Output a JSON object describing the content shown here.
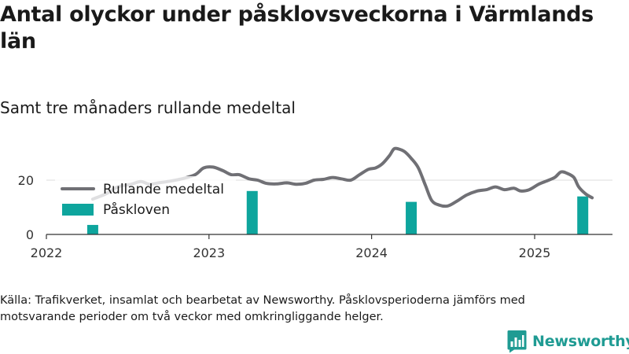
{
  "header": {
    "title": "Antal olyckor under påsklovsveckorna i Värmlands län",
    "subtitle": "Samt tre månaders rullande medeltal"
  },
  "footer": {
    "source": "Källa: Trafikverket, insamlat och bearbetat av Newsworthy. Påsklovsperioderna jämförs med motsvarande perioder om två veckor med omkringliggande helger.",
    "brand": "Newsworthy"
  },
  "colors": {
    "line": "#707075",
    "bar": "#0ea59d",
    "axis": "#333333",
    "grid": "#dddddd",
    "brand": "#1f9b93"
  },
  "chart_data": {
    "type": "bar+line",
    "xlabel": "",
    "ylabel": "",
    "x_ticks": [
      "2022",
      "2023",
      "2024",
      "2025"
    ],
    "y_ticks": [
      0,
      20
    ],
    "ylim": [
      0,
      33
    ],
    "grid": "horizontal",
    "legend": {
      "position": "top-left",
      "items": [
        {
          "label": "Rullande medeltal",
          "kind": "line"
        },
        {
          "label": "Påskloven",
          "kind": "bar"
        }
      ]
    },
    "series": [
      {
        "name": "Påskloven",
        "type": "bar",
        "points": [
          {
            "date": "2022-04-15",
            "value": 3.5
          },
          {
            "date": "2023-04-08",
            "value": 16
          },
          {
            "date": "2024-03-30",
            "value": 12
          },
          {
            "date": "2025-04-19",
            "value": 14
          }
        ]
      },
      {
        "name": "Rullande medeltal",
        "type": "line",
        "points": [
          {
            "date": "2022-04-15",
            "value": 13
          },
          {
            "date": "2022-05-15",
            "value": 15
          },
          {
            "date": "2022-06-10",
            "value": 17.5
          },
          {
            "date": "2022-07-10",
            "value": 18.5
          },
          {
            "date": "2022-08-01",
            "value": 19.5
          },
          {
            "date": "2022-08-20",
            "value": 18.5
          },
          {
            "date": "2022-09-10",
            "value": 19
          },
          {
            "date": "2022-10-01",
            "value": 19.5
          },
          {
            "date": "2022-11-01",
            "value": 20.5
          },
          {
            "date": "2022-12-01",
            "value": 22
          },
          {
            "date": "2022-12-20",
            "value": 24.5
          },
          {
            "date": "2023-01-10",
            "value": 24.8
          },
          {
            "date": "2023-02-01",
            "value": 23.5
          },
          {
            "date": "2023-02-20",
            "value": 22
          },
          {
            "date": "2023-03-10",
            "value": 22
          },
          {
            "date": "2023-04-01",
            "value": 20.5
          },
          {
            "date": "2023-04-20",
            "value": 20
          },
          {
            "date": "2023-05-10",
            "value": 18.8
          },
          {
            "date": "2023-06-01",
            "value": 18.6
          },
          {
            "date": "2023-06-25",
            "value": 19
          },
          {
            "date": "2023-07-15",
            "value": 18.5
          },
          {
            "date": "2023-08-05",
            "value": 18.8
          },
          {
            "date": "2023-08-25",
            "value": 20
          },
          {
            "date": "2023-09-15",
            "value": 20.3
          },
          {
            "date": "2023-10-05",
            "value": 21
          },
          {
            "date": "2023-10-25",
            "value": 20.5
          },
          {
            "date": "2023-11-15",
            "value": 20
          },
          {
            "date": "2023-12-05",
            "value": 22
          },
          {
            "date": "2023-12-25",
            "value": 24
          },
          {
            "date": "2024-01-10",
            "value": 24.5
          },
          {
            "date": "2024-01-25",
            "value": 26
          },
          {
            "date": "2024-02-10",
            "value": 29
          },
          {
            "date": "2024-02-20",
            "value": 31.5
          },
          {
            "date": "2024-03-01",
            "value": 31.5
          },
          {
            "date": "2024-03-15",
            "value": 30.5
          },
          {
            "date": "2024-03-30",
            "value": 28
          },
          {
            "date": "2024-04-15",
            "value": 24.5
          },
          {
            "date": "2024-05-01",
            "value": 18
          },
          {
            "date": "2024-05-15",
            "value": 12.5
          },
          {
            "date": "2024-06-01",
            "value": 10.8
          },
          {
            "date": "2024-06-20",
            "value": 10.5
          },
          {
            "date": "2024-07-10",
            "value": 12.2
          },
          {
            "date": "2024-08-01",
            "value": 14.5
          },
          {
            "date": "2024-08-25",
            "value": 16
          },
          {
            "date": "2024-09-15",
            "value": 16.5
          },
          {
            "date": "2024-10-05",
            "value": 17.5
          },
          {
            "date": "2024-10-25",
            "value": 16.5
          },
          {
            "date": "2024-11-15",
            "value": 17
          },
          {
            "date": "2024-12-01",
            "value": 16
          },
          {
            "date": "2024-12-20",
            "value": 16.5
          },
          {
            "date": "2025-01-10",
            "value": 18.5
          },
          {
            "date": "2025-01-25",
            "value": 19.5
          },
          {
            "date": "2025-02-15",
            "value": 21
          },
          {
            "date": "2025-03-01",
            "value": 23
          },
          {
            "date": "2025-03-15",
            "value": 22.5
          },
          {
            "date": "2025-03-30",
            "value": 21
          },
          {
            "date": "2025-04-10",
            "value": 17.5
          },
          {
            "date": "2025-04-25",
            "value": 15
          },
          {
            "date": "2025-05-10",
            "value": 13.5
          }
        ]
      }
    ]
  }
}
